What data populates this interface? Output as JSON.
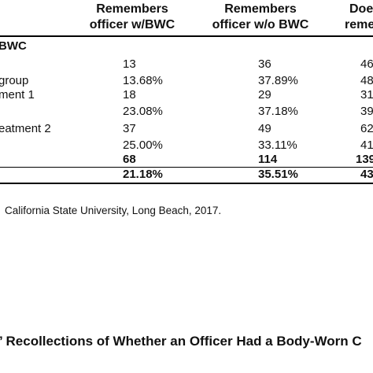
{
  "table": {
    "headers": [
      {
        "line1": "Remembers",
        "line2": "officer w/BWC"
      },
      {
        "line1": "Remembers",
        "line2": "officer w/o BWC"
      },
      {
        "line1": "Doe",
        "line2": "reme"
      }
    ],
    "section_label": "BWC",
    "rows": [
      {
        "label": "",
        "c1": "13",
        "c2": "36",
        "c3": "46"
      },
      {
        "label": "group",
        "c1": "13.68%",
        "c2": "37.89%",
        "c3": "48"
      },
      {
        "label": "ment 1",
        "c1": "18",
        "c2": "29",
        "c3": "31"
      },
      {
        "label": "",
        "c1": "23.08%",
        "c2": "37.18%",
        "c3": "39"
      },
      {
        "label": "eatment 2",
        "c1": "37",
        "c2": "49",
        "c3": "62"
      },
      {
        "label": "",
        "c1": "25.00%",
        "c2": "33.11%",
        "c3": "41"
      },
      {
        "label": "",
        "c1": "68",
        "c2": "114",
        "c3": "139"
      },
      {
        "label": "",
        "c1": "21.18%",
        "c2": "35.51%",
        "c3": "43"
      }
    ]
  },
  "source_note": "California State University, Long Beach, 2017.",
  "caption": "’ Recollections of Whether an Officer Had a Body-Worn C"
}
